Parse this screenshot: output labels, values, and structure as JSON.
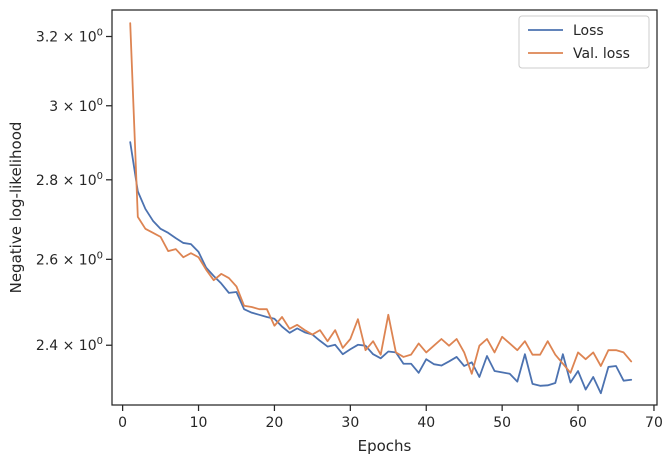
{
  "chart_data": {
    "type": "line",
    "xlabel": "Epochs",
    "ylabel": "Negative log-likelihood",
    "xlim": [
      -1.4,
      70.4
    ],
    "ylim": [
      2.27,
      3.28
    ],
    "y_scale": "log",
    "grid": false,
    "legend_position": "top-right",
    "x_ticks": [
      0,
      10,
      20,
      30,
      40,
      50,
      60,
      70
    ],
    "x_tick_labels": [
      "0",
      "10",
      "20",
      "30",
      "40",
      "50",
      "60",
      "70"
    ],
    "y_ticks": [
      2.4,
      2.6,
      2.8,
      3.0,
      3.2
    ],
    "y_tick_mantissas": [
      "2.4",
      "2.6",
      "2.8",
      "3",
      "3.2"
    ],
    "y_tick_times": "×",
    "y_tick_base": "10",
    "y_tick_exponent": "0",
    "x": [
      1,
      2,
      3,
      4,
      5,
      6,
      7,
      8,
      9,
      10,
      11,
      12,
      13,
      14,
      15,
      16,
      17,
      18,
      19,
      20,
      21,
      22,
      23,
      24,
      25,
      26,
      27,
      28,
      29,
      30,
      31,
      32,
      33,
      34,
      35,
      36,
      37,
      38,
      39,
      40,
      41,
      42,
      43,
      44,
      45,
      46,
      47,
      48,
      49,
      50,
      51,
      52,
      53,
      54,
      55,
      56,
      57,
      58,
      59,
      60,
      61,
      62,
      63,
      64,
      65,
      66,
      67
    ],
    "series": [
      {
        "name": "Loss",
        "color": "#4c72b0",
        "values": [
          2.9,
          2.77,
          2.725,
          2.695,
          2.675,
          2.665,
          2.652,
          2.64,
          2.637,
          2.618,
          2.58,
          2.56,
          2.542,
          2.52,
          2.522,
          2.482,
          2.474,
          2.469,
          2.464,
          2.46,
          2.442,
          2.428,
          2.438,
          2.429,
          2.424,
          2.41,
          2.397,
          2.401,
          2.38,
          2.391,
          2.401,
          2.399,
          2.38,
          2.371,
          2.386,
          2.384,
          2.359,
          2.359,
          2.339,
          2.369,
          2.358,
          2.355,
          2.364,
          2.374,
          2.354,
          2.362,
          2.33,
          2.376,
          2.343,
          2.34,
          2.337,
          2.32,
          2.38,
          2.315,
          2.311,
          2.312,
          2.317,
          2.38,
          2.318,
          2.343,
          2.303,
          2.33,
          2.295,
          2.352,
          2.354,
          2.322,
          2.324
        ]
      },
      {
        "name": "Val. loss",
        "color": "#dd8452",
        "values": [
          3.24,
          2.705,
          2.675,
          2.665,
          2.655,
          2.62,
          2.625,
          2.605,
          2.615,
          2.605,
          2.575,
          2.55,
          2.565,
          2.555,
          2.535,
          2.49,
          2.487,
          2.482,
          2.482,
          2.444,
          2.464,
          2.437,
          2.446,
          2.434,
          2.424,
          2.434,
          2.409,
          2.434,
          2.394,
          2.414,
          2.459,
          2.389,
          2.409,
          2.379,
          2.469,
          2.384,
          2.374,
          2.379,
          2.404,
          2.384,
          2.399,
          2.414,
          2.399,
          2.414,
          2.384,
          2.337,
          2.399,
          2.414,
          2.384,
          2.419,
          2.404,
          2.389,
          2.409,
          2.379,
          2.379,
          2.409,
          2.379,
          2.359,
          2.339,
          2.384,
          2.369,
          2.384,
          2.354,
          2.389,
          2.389,
          2.384,
          2.364
        ]
      }
    ]
  }
}
